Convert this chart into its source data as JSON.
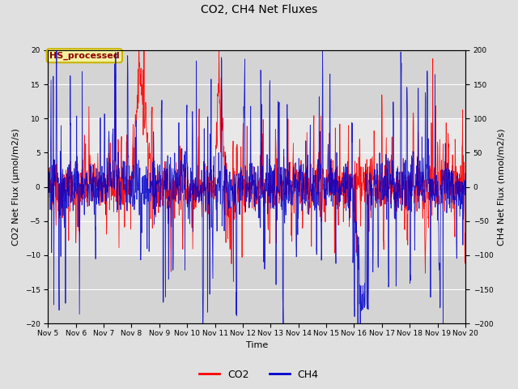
{
  "title": "CO2, CH4 Net Fluxes",
  "xlabel": "Time",
  "ylabel_left": "CO2 Net Flux (μmol/m2/s)",
  "ylabel_right": "CH4 Net Flux (nmol/m2/s)",
  "ylim_left": [
    -20,
    20
  ],
  "ylim_right": [
    -200,
    200
  ],
  "annotation_text": "HS_processed",
  "annotation_box_color": "#f5f0a0",
  "annotation_text_color": "#8b0000",
  "annotation_edge_color": "#c8b400",
  "co2_color": "#ff0000",
  "ch4_color": "#0000cc",
  "fig_bg_color": "#e0e0e0",
  "plot_bg_color": "#d4d4d4",
  "plot_bg_inner_color": "#e8e8e8",
  "grid_color": "#ffffff",
  "legend_co2": "CO2",
  "legend_ch4": "CH4",
  "x_tick_labels": [
    "Nov 5",
    "Nov 6",
    "Nov 7",
    "Nov 8",
    "Nov 9",
    "Nov 10",
    "Nov 11",
    "Nov 12",
    "Nov 13",
    "Nov 14",
    "Nov 15",
    "Nov 16",
    "Nov 17",
    "Nov 18",
    "Nov 19",
    "Nov 20"
  ],
  "seed": 42,
  "n_points": 1500,
  "figsize": [
    6.4,
    4.8
  ],
  "dpi": 100
}
